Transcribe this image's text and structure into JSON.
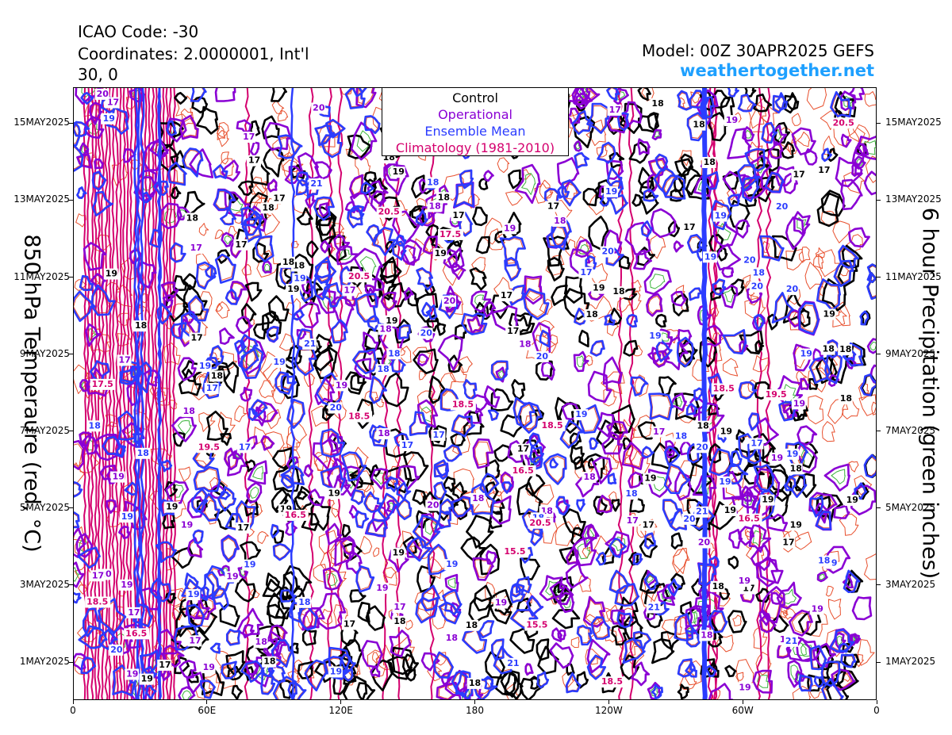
{
  "header": {
    "icao": "ICAO Code: -30",
    "coords": "Coordinates: 2.0000001, Int'l",
    "coords2": "30, 0",
    "model": "Model: 00Z 30APR2025 GEFS",
    "site": "weathertogether.net"
  },
  "legend": {
    "control": "Control",
    "operational": "Operational",
    "ensemble_mean": "Ensemble Mean",
    "climatology": "Climatology (1981-2010)"
  },
  "colors": {
    "control": "#000000",
    "operational": "#8a00d4",
    "ensemble_mean": "#2b3cff",
    "climatology": "#d4006e",
    "members": "#e8502e",
    "precip": "#3cb43c",
    "site": "#1ea0ff"
  },
  "chart_data": {
    "type": "line",
    "title": "",
    "ylabel_left": "850 hPa Temperaure (red, °C)",
    "ylabel_right": "6 hour Precipitation (green inches)",
    "x_ticks": [
      "0",
      "60E",
      "120E",
      "180",
      "120W",
      "60W",
      "0"
    ],
    "y_ticks": [
      "1MAY2025",
      "3MAY2025",
      "5MAY2025",
      "7MAY2025",
      "9MAY2025",
      "11MAY2025",
      "13MAY2025",
      "15MAY2025"
    ],
    "grid": false,
    "legend_position": "top-center",
    "series": [
      {
        "name": "Control",
        "contour_labels": [
          "19",
          "18",
          "17",
          "19",
          "18",
          "17",
          "18",
          "19",
          "17",
          "18"
        ]
      },
      {
        "name": "Operational",
        "contour_labels": [
          "19",
          "18",
          "17",
          "20",
          "19",
          "18",
          "17",
          "19"
        ]
      },
      {
        "name": "Ensemble Mean",
        "contour_labels": [
          "19",
          "20",
          "21",
          "19",
          "18",
          "17",
          "18",
          "19",
          "20"
        ]
      },
      {
        "name": "Climatology (1981-2010)",
        "contour_labels": [
          "20.5",
          "19.5",
          "18.5",
          "18.5",
          "15.5",
          "16.5",
          "17.5",
          "16.5",
          "18.5",
          "20.5"
        ]
      }
    ]
  }
}
